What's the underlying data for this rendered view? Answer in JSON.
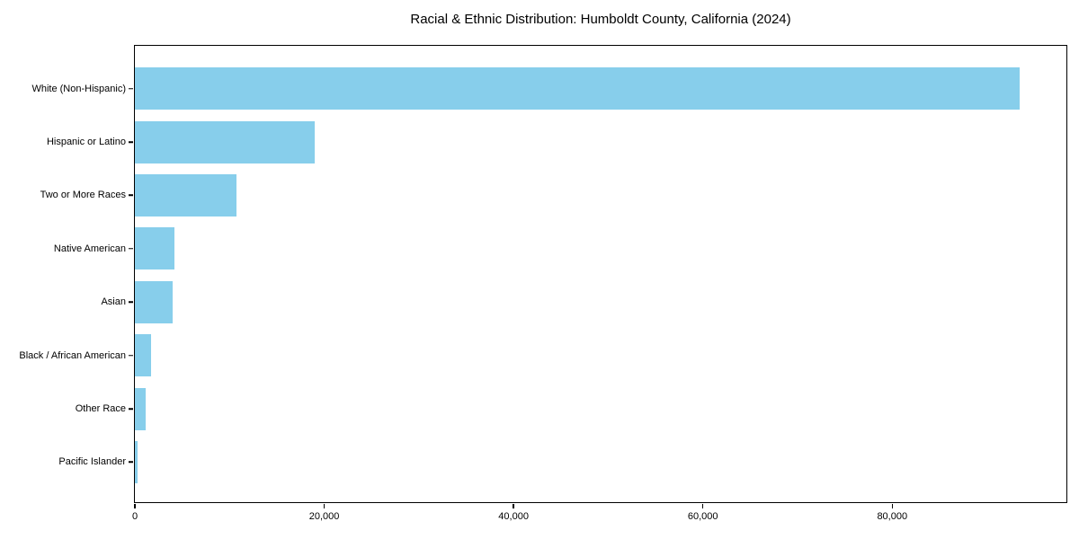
{
  "chart_data": {
    "type": "bar",
    "orientation": "horizontal",
    "title": "Racial & Ethnic Distribution: Humboldt County, California (2024)",
    "categories": [
      "White (Non-Hispanic)",
      "Hispanic or Latino",
      "Two or More Races",
      "Native American",
      "Asian",
      "Black / African American",
      "Other Race",
      "Pacific Islander"
    ],
    "values": [
      93500,
      19000,
      10700,
      4200,
      4000,
      1700,
      1100,
      300
    ],
    "xlabel": "",
    "ylabel": "",
    "xlim": [
      0,
      98400
    ],
    "xticks": [
      0,
      20000,
      40000,
      60000,
      80000
    ],
    "xtick_labels": [
      "0",
      "20,000",
      "40,000",
      "60,000",
      "80,000"
    ],
    "bar_color": "#87CEEB",
    "grid": false,
    "legend": null
  },
  "colors": {
    "bar": "#87CEEB",
    "axis": "#000000",
    "text": "#000000",
    "background": "#ffffff"
  }
}
